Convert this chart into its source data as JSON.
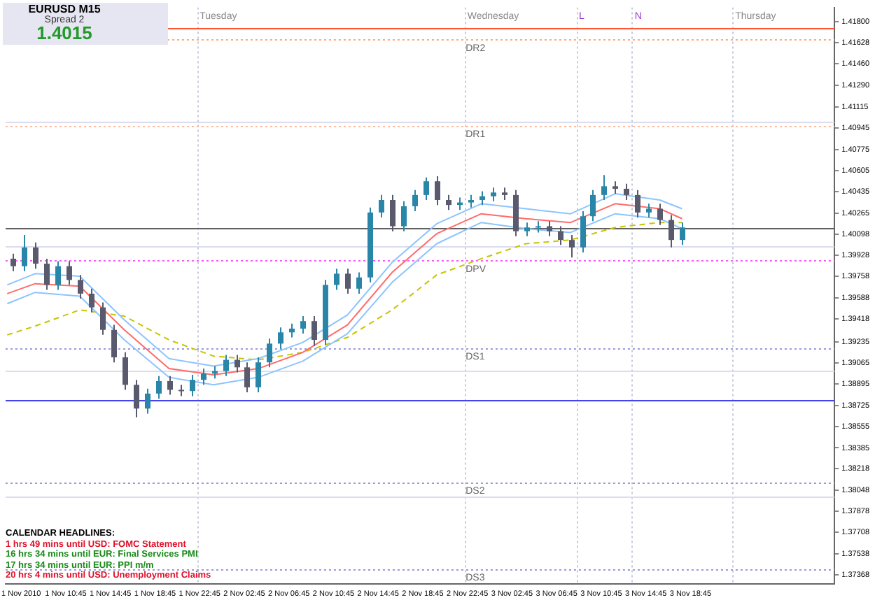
{
  "chart_data": {
    "type": "candlestick",
    "title": "EURUSD  M15",
    "subtitle": "Spread  2",
    "colors": [
      "#5a5a6e",
      "#2a86a8",
      "#5a5a6e",
      "#5a5a6e",
      "#2a86a8",
      "#5a5a6e",
      "#5a5a6e",
      "#5a5a6e",
      "#5a5a6e",
      "#5a5a6e",
      "#5a5a6e",
      "#5a5a6e",
      "#2a86a8",
      "#2a86a8",
      "#5a5a6e",
      "#5a5a6e",
      "#2a86a8",
      "#2a86a8",
      "#2a86a8",
      "#2a86a8",
      "#5a5a6e",
      "#5a5a6e",
      "#2a86a8",
      "#2a86a8",
      "#2a86a8",
      "#2a86a8",
      "#2a86a8",
      "#5a5a6e",
      "#2a86a8",
      "#2a86a8",
      "#5a5a6e",
      "#2a86a8",
      "#2a86a8",
      "#2a86a8",
      "#5a5a6e",
      "#2a86a8",
      "#2a86a8",
      "#2a86a8",
      "#5a5a6e",
      "#5a5a6e",
      "#2a86a8",
      "#2a86a8",
      "#2a86a8",
      "#2a86a8",
      "#5a5a6e",
      "#5a5a6e",
      "#2a86a8",
      "#2a86a8",
      "#5a5a6e",
      "#5a5a6e",
      "#5a5a6e",
      "#2a86a8",
      "#2a86a8",
      "#2a86a8",
      "#5a5a6e",
      "#5a5a6e",
      "#5a5a6e",
      "#2a86a8",
      "#5a5a6e",
      "#5a5a6e",
      "#2a86a8"
    ],
    "x": [
      "2010-11-01T06:00",
      "2010-11-01T07:00",
      "2010-11-01T08:00",
      "2010-11-01T09:00",
      "2010-11-01T10:00",
      "2010-11-01T11:00",
      "2010-11-01T12:00",
      "2010-11-01T13:00",
      "2010-11-01T14:00",
      "2010-11-01T15:00",
      "2010-11-01T16:00",
      "2010-11-01T17:00",
      "2010-11-01T18:00",
      "2010-11-01T19:00",
      "2010-11-01T20:00",
      "2010-11-01T21:00",
      "2010-11-01T22:00",
      "2010-11-01T23:00",
      "2010-11-02T00:00",
      "2010-11-02T01:00",
      "2010-11-02T02:00",
      "2010-11-02T03:00",
      "2010-11-02T04:00",
      "2010-11-02T05:00",
      "2010-11-02T06:00",
      "2010-11-02T07:00",
      "2010-11-02T08:00",
      "2010-11-02T09:00",
      "2010-11-02T10:00",
      "2010-11-02T11:00",
      "2010-11-02T12:00",
      "2010-11-02T13:00",
      "2010-11-02T14:00",
      "2010-11-02T15:00",
      "2010-11-02T16:00",
      "2010-11-02T17:00",
      "2010-11-02T18:00",
      "2010-11-02T19:00",
      "2010-11-02T20:00",
      "2010-11-02T21:00",
      "2010-11-02T22:00",
      "2010-11-02T23:00",
      "2010-11-03T00:00",
      "2010-11-03T01:00",
      "2010-11-03T02:00",
      "2010-11-03T03:00",
      "2010-11-03T04:00",
      "2010-11-03T05:00",
      "2010-11-03T06:00",
      "2010-11-03T07:00",
      "2010-11-03T08:00",
      "2010-11-03T09:00",
      "2010-11-03T10:00",
      "2010-11-03T11:00",
      "2010-11-03T12:00",
      "2010-11-03T13:00",
      "2010-11-03T14:00",
      "2010-11-03T15:00",
      "2010-11-03T16:00",
      "2010-11-03T17:00",
      "2010-11-03T18:00"
    ],
    "ohlc": [
      [
        1.399,
        1.3994,
        1.398,
        1.3984
      ],
      [
        1.3984,
        1.4009,
        1.398,
        1.3999
      ],
      [
        1.3999,
        1.4003,
        1.3982,
        1.3986
      ],
      [
        1.3986,
        1.399,
        1.3965,
        1.3969
      ],
      [
        1.3969,
        1.3988,
        1.3965,
        1.3984
      ],
      [
        1.3984,
        1.3988,
        1.3969,
        1.3973
      ],
      [
        1.3973,
        1.3977,
        1.3958,
        1.3962
      ],
      [
        1.3962,
        1.3966,
        1.3947,
        1.3951
      ],
      [
        1.3951,
        1.3955,
        1.3929,
        1.3933
      ],
      [
        1.3933,
        1.3937,
        1.3907,
        1.3911
      ],
      [
        1.3911,
        1.3915,
        1.3885,
        1.3889
      ],
      [
        1.3889,
        1.3893,
        1.3863,
        1.387
      ],
      [
        1.387,
        1.3886,
        1.3866,
        1.3882
      ],
      [
        1.3882,
        1.3896,
        1.3878,
        1.3892
      ],
      [
        1.3892,
        1.3896,
        1.3881,
        1.3885
      ],
      [
        1.3885,
        1.3889,
        1.388,
        1.3884
      ],
      [
        1.3884,
        1.3897,
        1.388,
        1.3893
      ],
      [
        1.3893,
        1.3902,
        1.3889,
        1.3898
      ],
      [
        1.3898,
        1.3904,
        1.3894,
        1.39
      ],
      [
        1.39,
        1.3913,
        1.3896,
        1.3909
      ],
      [
        1.3909,
        1.3913,
        1.3899,
        1.3903
      ],
      [
        1.3903,
        1.3907,
        1.3883,
        1.3887
      ],
      [
        1.3887,
        1.3911,
        1.3883,
        1.3907
      ],
      [
        1.3907,
        1.3926,
        1.3903,
        1.3922
      ],
      [
        1.3922,
        1.3935,
        1.3918,
        1.3931
      ],
      [
        1.3931,
        1.3938,
        1.3927,
        1.3934
      ],
      [
        1.3934,
        1.3944,
        1.393,
        1.394
      ],
      [
        1.394,
        1.3944,
        1.392,
        1.3925
      ],
      [
        1.3925,
        1.3973,
        1.3921,
        1.3969
      ],
      [
        1.3969,
        1.3982,
        1.3965,
        1.3978
      ],
      [
        1.3978,
        1.3982,
        1.3962,
        1.3966
      ],
      [
        1.3966,
        1.3979,
        1.3962,
        1.3975
      ],
      [
        1.3975,
        1.4031,
        1.3971,
        1.4027
      ],
      [
        1.4027,
        1.4041,
        1.4023,
        1.4037
      ],
      [
        1.4037,
        1.4041,
        1.4012,
        1.4016
      ],
      [
        1.4016,
        1.4036,
        1.4012,
        1.4032
      ],
      [
        1.4032,
        1.4045,
        1.4028,
        1.4041
      ],
      [
        1.4041,
        1.4055,
        1.4037,
        1.4052
      ],
      [
        1.4052,
        1.4056,
        1.4033,
        1.4037
      ],
      [
        1.4037,
        1.4041,
        1.4029,
        1.4033
      ],
      [
        1.4033,
        1.4039,
        1.4029,
        1.4035
      ],
      [
        1.4035,
        1.4041,
        1.4031,
        1.4037
      ],
      [
        1.4037,
        1.4044,
        1.4033,
        1.404
      ],
      [
        1.404,
        1.4047,
        1.4036,
        1.4043
      ],
      [
        1.4043,
        1.4047,
        1.4037,
        1.4041
      ],
      [
        1.4041,
        1.4045,
        1.4008,
        1.4012
      ],
      [
        1.4012,
        1.4019,
        1.4008,
        1.4015
      ],
      [
        1.4015,
        1.402,
        1.4011,
        1.4016
      ],
      [
        1.4016,
        1.402,
        1.4008,
        1.4012
      ],
      [
        1.4012,
        1.4016,
        1.4001,
        1.4005
      ],
      [
        1.4005,
        1.4009,
        1.3991,
        1.3999
      ],
      [
        1.3999,
        1.4028,
        1.3995,
        1.4024
      ],
      [
        1.4024,
        1.4045,
        1.402,
        1.4041
      ],
      [
        1.4041,
        1.4057,
        1.4037,
        1.4048
      ],
      [
        1.4048,
        1.4052,
        1.4042,
        1.4046
      ],
      [
        1.4046,
        1.405,
        1.4037,
        1.4041
      ],
      [
        1.4041,
        1.4045,
        1.4023,
        1.4027
      ],
      [
        1.4027,
        1.4034,
        1.4023,
        1.403
      ],
      [
        1.403,
        1.4034,
        1.4017,
        1.4021
      ],
      [
        1.4021,
        1.4025,
        1.3999,
        1.4005
      ],
      [
        1.4005,
        1.4019,
        1.4001,
        1.4015
      ]
    ],
    "series": [
      {
        "type": "line",
        "color": "#8cc4ff",
        "x": [
          "2010-11-01T05:30",
          "2010-11-01T08:00",
          "2010-11-01T12:00",
          "2010-11-01T16:00",
          "2010-11-01T20:00",
          "2010-11-02T00:00",
          "2010-11-02T04:00",
          "2010-11-02T08:00",
          "2010-11-02T12:00",
          "2010-11-02T16:00",
          "2010-11-02T20:00",
          "2010-11-03T00:00",
          "2010-11-03T04:00",
          "2010-11-03T08:00",
          "2010-11-03T12:00",
          "2010-11-03T16:00",
          "2010-11-03T18:00"
        ],
        "values": [
          1.3969,
          1.3978,
          1.3976,
          1.3941,
          1.391,
          1.3904,
          1.391,
          1.3923,
          1.3945,
          1.3987,
          1.4018,
          1.4034,
          1.403,
          1.4026,
          1.4042,
          1.4037,
          1.403
        ]
      },
      {
        "type": "line",
        "color": "#ff6b6b",
        "x": [
          "2010-11-01T05:30",
          "2010-11-01T08:00",
          "2010-11-01T12:00",
          "2010-11-01T16:00",
          "2010-11-01T20:00",
          "2010-11-02T00:00",
          "2010-11-02T04:00",
          "2010-11-02T08:00",
          "2010-11-02T12:00",
          "2010-11-02T16:00",
          "2010-11-02T20:00",
          "2010-11-03T00:00",
          "2010-11-03T04:00",
          "2010-11-03T08:00",
          "2010-11-03T12:00",
          "2010-11-03T16:00",
          "2010-11-03T18:00"
        ],
        "values": [
          1.3962,
          1.397,
          1.3968,
          1.3933,
          1.3902,
          1.3897,
          1.3902,
          1.3915,
          1.3937,
          1.3979,
          1.401,
          1.4026,
          1.4022,
          1.4019,
          1.4034,
          1.403,
          1.4022
        ]
      },
      {
        "type": "line",
        "color": "#8cc4ff",
        "x": [
          "2010-11-01T05:30",
          "2010-11-01T08:00",
          "2010-11-01T12:00",
          "2010-11-01T16:00",
          "2010-11-01T20:00",
          "2010-11-02T00:00",
          "2010-11-02T04:00",
          "2010-11-02T08:00",
          "2010-11-02T12:00",
          "2010-11-02T16:00",
          "2010-11-02T20:00",
          "2010-11-03T00:00",
          "2010-11-03T04:00",
          "2010-11-03T08:00",
          "2010-11-03T12:00",
          "2010-11-03T16:00",
          "2010-11-03T18:00"
        ],
        "values": [
          1.3954,
          1.3963,
          1.396,
          1.3925,
          1.3895,
          1.3889,
          1.3895,
          1.3908,
          1.393,
          1.3971,
          1.4002,
          1.4019,
          1.4014,
          1.4011,
          1.4026,
          1.4022,
          1.4014
        ]
      },
      {
        "type": "line",
        "color": "#c8c400",
        "line_style": "dashed",
        "x": [
          "2010-11-01T05:30",
          "2010-11-01T08:00",
          "2010-11-01T12:00",
          "2010-11-01T16:00",
          "2010-11-01T20:00",
          "2010-11-02T00:00",
          "2010-11-02T04:00",
          "2010-11-02T08:00",
          "2010-11-02T12:00",
          "2010-11-02T16:00",
          "2010-11-02T20:00",
          "2010-11-03T00:00",
          "2010-11-03T04:00",
          "2010-11-03T08:00",
          "2010-11-03T12:00",
          "2010-11-03T16:00",
          "2010-11-03T18:00"
        ],
        "values": [
          1.3929,
          1.3936,
          1.3949,
          1.3944,
          1.3925,
          1.3912,
          1.3909,
          1.3915,
          1.3927,
          1.3949,
          1.3977,
          1.399,
          1.4002,
          1.4005,
          1.4015,
          1.4019,
          1.4019
        ]
      }
    ],
    "marker": "none",
    "xlim": [
      "2010-11-01T05:21",
      "2010-11-04T07:40"
    ],
    "ylim": [
      1.37297,
      1.41912
    ],
    "xticks": [
      {
        "value": "2010-11-01T06:45",
        "label": "1 Nov 2010"
      },
      {
        "value": "2010-11-01T10:45",
        "label": "1 Nov 10:45"
      },
      {
        "value": "2010-11-01T14:45",
        "label": "1 Nov 14:45"
      },
      {
        "value": "2010-11-01T18:45",
        "label": "1 Nov 18:45"
      },
      {
        "value": "2010-11-01T22:45",
        "label": "1 Nov 22:45"
      },
      {
        "value": "2010-11-02T02:45",
        "label": "2 Nov 02:45"
      },
      {
        "value": "2010-11-02T06:45",
        "label": "2 Nov 06:45"
      },
      {
        "value": "2010-11-02T10:45",
        "label": "2 Nov 10:45"
      },
      {
        "value": "2010-11-02T14:45",
        "label": "2 Nov 14:45"
      },
      {
        "value": "2010-11-02T18:45",
        "label": "2 Nov 18:45"
      },
      {
        "value": "2010-11-02T22:45",
        "label": "2 Nov 22:45"
      },
      {
        "value": "2010-11-03T02:45",
        "label": "3 Nov 02:45"
      },
      {
        "value": "2010-11-03T06:45",
        "label": "3 Nov 06:45"
      },
      {
        "value": "2010-11-03T10:45",
        "label": "3 Nov 10:45"
      },
      {
        "value": "2010-11-03T14:45",
        "label": "3 Nov 14:45"
      },
      {
        "value": "2010-11-03T18:45",
        "label": "3 Nov 18:45"
      }
    ],
    "yticks": [
      {
        "value": 1.418,
        "label": "1.41800"
      },
      {
        "value": 1.41628,
        "label": "1.41628"
      },
      {
        "value": 1.4146,
        "label": "1.41460"
      },
      {
        "value": 1.4129,
        "label": "1.41290"
      },
      {
        "value": 1.41115,
        "label": "1.41115"
      },
      {
        "value": 1.40945,
        "label": "1.40945"
      },
      {
        "value": 1.40775,
        "label": "1.40775"
      },
      {
        "value": 1.40605,
        "label": "1.40605"
      },
      {
        "value": 1.40435,
        "label": "1.40435"
      },
      {
        "value": 1.40265,
        "label": "1.40265"
      },
      {
        "value": 1.40098,
        "label": "1.40098"
      },
      {
        "value": 1.39928,
        "label": "1.39928"
      },
      {
        "value": 1.39758,
        "label": "1.39758"
      },
      {
        "value": 1.39588,
        "label": "1.39588"
      },
      {
        "value": 1.39418,
        "label": "1.39418"
      },
      {
        "value": 1.39235,
        "label": "1.39235"
      },
      {
        "value": 1.39065,
        "label": "1.39065"
      },
      {
        "value": 1.38895,
        "label": "1.38895"
      },
      {
        "value": 1.38725,
        "label": "1.38725"
      },
      {
        "value": 1.38555,
        "label": "1.38555"
      },
      {
        "value": 1.38385,
        "label": "1.38385"
      },
      {
        "value": 1.38218,
        "label": "1.38218"
      },
      {
        "value": 1.38048,
        "label": "1.38048"
      },
      {
        "value": 1.37878,
        "label": "1.37878"
      },
      {
        "value": 1.37708,
        "label": "1.37708"
      },
      {
        "value": 1.37538,
        "label": "1.37538"
      },
      {
        "value": 1.37368,
        "label": "1.37368"
      }
    ],
    "ref_lines": [
      {
        "axis": "x",
        "value": "2010-11-01T22:30",
        "label": "Tuesday",
        "color": "#c8c8e0",
        "line_style": "dotted"
      },
      {
        "axis": "x",
        "value": "2010-11-02T22:30",
        "label": "Wednesday",
        "color": "#c8c8e0",
        "line_style": "dotted"
      },
      {
        "axis": "x",
        "value": "2010-11-03T08:30",
        "label": "L",
        "color": "#c8c8e0",
        "line_style": "dotted"
      },
      {
        "axis": "x",
        "value": "2010-11-03T13:30",
        "label": "N",
        "color": "#c8c8e0",
        "line_style": "dotted"
      },
      {
        "axis": "x",
        "value": "2010-11-03T22:30",
        "label": "Thursday",
        "color": "#c8c8e0",
        "line_style": "dotted"
      },
      {
        "axis": "y",
        "value": 1.41,
        "color": "#dcdcf0",
        "line_style": "solid"
      },
      {
        "axis": "y",
        "value": 1.4,
        "color": "#dcdcf0",
        "line_style": "solid"
      },
      {
        "axis": "y",
        "value": 1.39,
        "color": "#dcdcf0",
        "line_style": "solid"
      },
      {
        "axis": "y",
        "value": 1.38,
        "color": "#dcdcf0",
        "line_style": "solid"
      },
      {
        "axis": "y",
        "value": 1.4015,
        "color": "#606060",
        "line_style": "solid"
      },
      {
        "axis": "y",
        "value": 1.41747,
        "color": "#ff5533",
        "line_style": "solid"
      },
      {
        "axis": "y",
        "value": 1.38769,
        "color": "#4444ee",
        "line_style": "solid"
      },
      {
        "axis": "y",
        "value": 1.41659,
        "label": "DR2",
        "color": "#ffaa77",
        "line_style": "dotted"
      },
      {
        "axis": "y",
        "value": 1.40967,
        "label": "DR1",
        "color": "#ffbb99",
        "line_style": "dotted"
      },
      {
        "axis": "y",
        "value": 1.3989,
        "label": "DPV",
        "color": "#ff55ff",
        "line_style": "dotted"
      },
      {
        "axis": "y",
        "value": 1.39187,
        "label": "DS1",
        "color": "#9999dd",
        "line_style": "dotted"
      },
      {
        "axis": "y",
        "value": 1.3811,
        "label": "DS2",
        "color": "#9999dd",
        "line_style": "dotted"
      },
      {
        "axis": "y",
        "value": 1.37418,
        "label": "DS3",
        "color": "#9999dd",
        "line_style": "dotted"
      }
    ],
    "annotations": [
      "1.4015",
      "CALENDAR  HEADLINES:",
      "1 hrs 49 mins until USD: FOMC Statement",
      "16 hrs 34 mins until EUR: Final Services PMI",
      "17 hrs 34 mins until EUR: PPI m/m",
      "20 hrs 4 mins until USD: Unemployment Claims"
    ]
  }
}
